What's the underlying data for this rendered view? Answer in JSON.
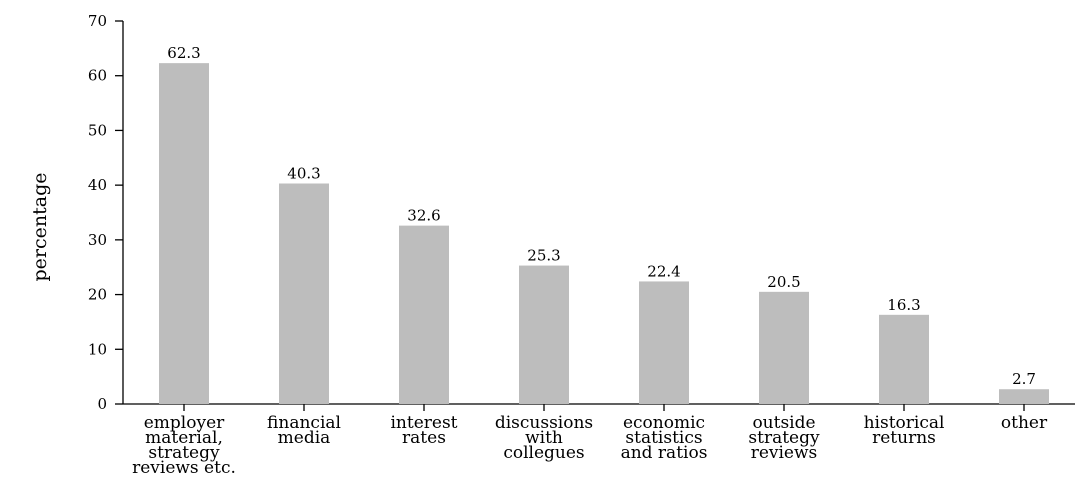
{
  "chart_data": {
    "type": "bar",
    "title": "",
    "xlabel": "",
    "ylabel": "percentage",
    "ylim": [
      0,
      70
    ],
    "yticks": [
      0,
      10,
      20,
      30,
      40,
      50,
      60,
      70
    ],
    "grid": false,
    "bar_color": "#bdbdbd",
    "categories": [
      [
        "employer",
        "material,",
        "strategy",
        "reviews etc."
      ],
      [
        "financial",
        "media"
      ],
      [
        "interest",
        "rates"
      ],
      [
        "discussions",
        "with",
        "collegues"
      ],
      [
        "economic",
        "statistics",
        "and ratios"
      ],
      [
        "outside",
        "strategy",
        "reviews"
      ],
      [
        "historical",
        "returns"
      ],
      [
        "other"
      ]
    ],
    "values": [
      62.3,
      40.3,
      32.6,
      25.3,
      22.4,
      20.5,
      16.3,
      2.7
    ],
    "value_labels": [
      "62.3",
      "40.3",
      "32.6",
      "25.3",
      "22.4",
      "20.5",
      "16.3",
      "2.7"
    ]
  }
}
